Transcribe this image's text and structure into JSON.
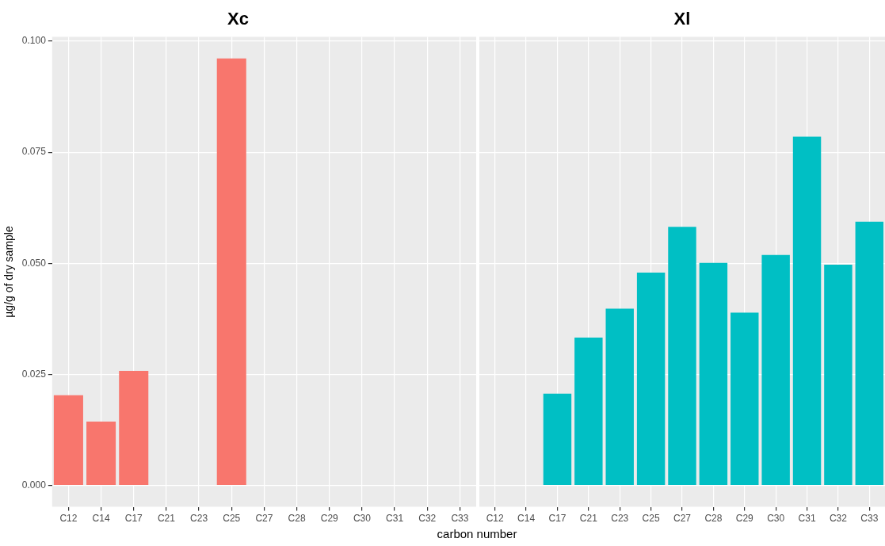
{
  "chart_data": [
    {
      "type": "bar",
      "title": "Xc",
      "ylabel": "µg/g of dry sample",
      "xlabel": "carbon number",
      "categories": [
        "C12",
        "C14",
        "C17",
        "C21",
        "C23",
        "C25",
        "C27",
        "C28",
        "C29",
        "C30",
        "C31",
        "C32",
        "C33"
      ],
      "values": [
        0.0203,
        0.0144,
        0.0258,
        null,
        null,
        0.0961,
        null,
        null,
        null,
        null,
        null,
        null,
        null
      ],
      "color": "#f8766d",
      "ylim": [
        -0.0048,
        0.101
      ],
      "yticks": [
        {
          "value": 0,
          "label": "0.000"
        },
        0.025,
        {
          "value": 0.05,
          "label": "0.050"
        },
        0.075,
        {
          "value": 0.1,
          "label": "0.100"
        }
      ],
      "grid": true,
      "legend": false
    },
    {
      "type": "bar",
      "title": "Xl",
      "categories": [
        "C12",
        "C14",
        "C17",
        "C21",
        "C23",
        "C25",
        "C27",
        "C28",
        "C29",
        "C30",
        "C31",
        "C32",
        "C33"
      ],
      "values": [
        null,
        null,
        0.0207,
        0.0333,
        0.0398,
        0.0479,
        0.0582,
        0.0501,
        0.0389,
        0.0519,
        0.0785,
        0.0497,
        0.0594
      ],
      "color": "#00bfc4",
      "ylim": [
        -0.0048,
        0.101
      ],
      "yticks": [
        {
          "value": 0,
          "label": null
        },
        {
          "value": 0.025,
          "label": null
        },
        {
          "value": 0.05,
          "label": null
        },
        {
          "value": 0.075,
          "label": null
        },
        {
          "value": 0.1,
          "label": null
        }
      ],
      "grid": true,
      "legend": false,
      "tick_labels": "x"
    }
  ]
}
